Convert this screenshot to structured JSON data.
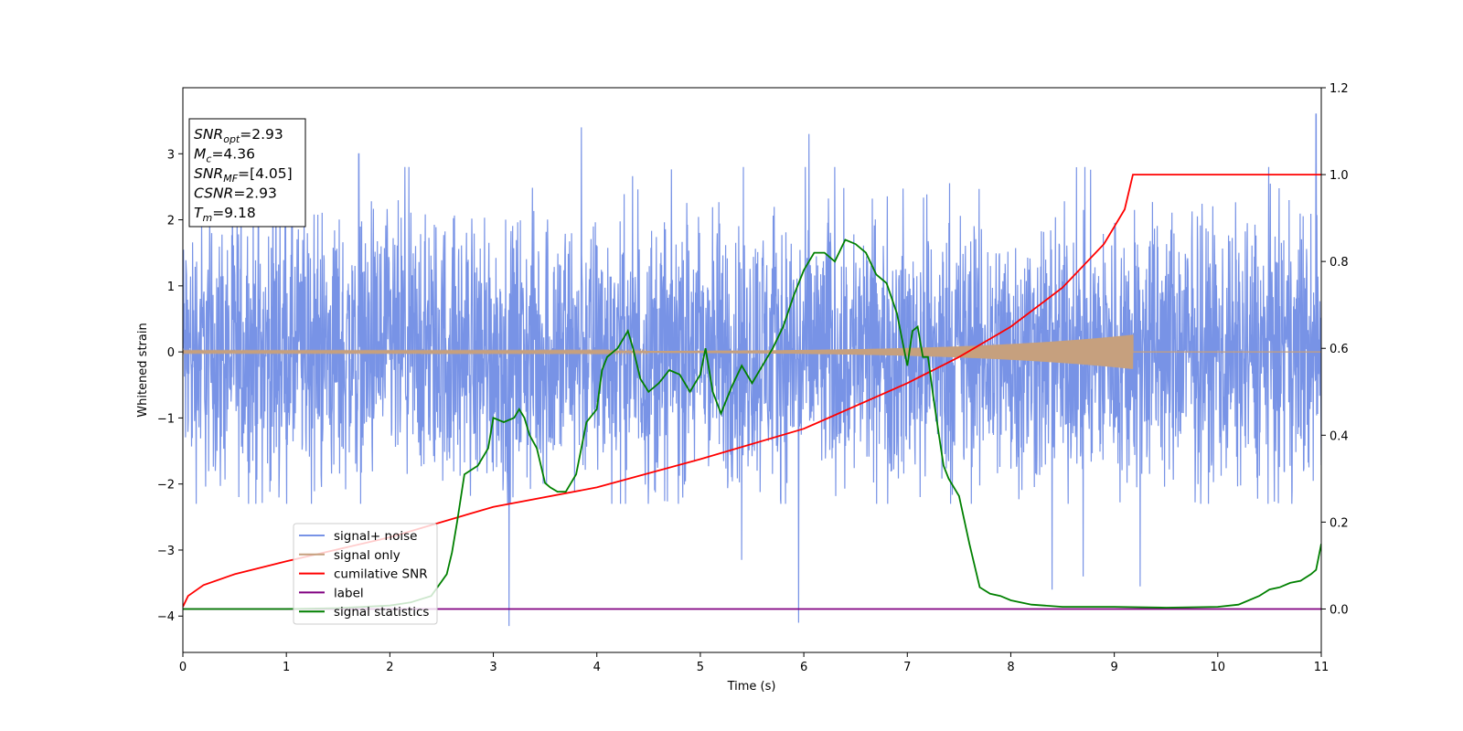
{
  "chart_data": {
    "type": "line",
    "xlabel": "Time (s)",
    "ylabel": "Whitened strain",
    "xlim": [
      0,
      11
    ],
    "ylim": [
      -4.55,
      4.0
    ],
    "y2lim": [
      -0.1,
      1.2
    ],
    "x_ticks": [
      0,
      1,
      2,
      3,
      4,
      5,
      6,
      7,
      8,
      9,
      10,
      11
    ],
    "y_ticks": [
      -4,
      -3,
      -2,
      -1,
      0,
      1,
      2,
      3
    ],
    "y2_ticks": [
      0.0,
      0.2,
      0.4,
      0.6,
      0.8,
      1.0,
      1.2
    ],
    "y2_tick_labels": [
      "0.0",
      "0.2",
      "0.4",
      "0.6",
      "0.8",
      "1.0",
      "1.2"
    ],
    "grid": false,
    "legend_position": "lower-left",
    "annotation": {
      "lines": [
        {
          "label": "SNR",
          "sub": "opt",
          "value": "=2.93"
        },
        {
          "label": "M",
          "sub": "c",
          "value": "=4.36"
        },
        {
          "label": "SNR",
          "sub": "MF",
          "value": "=[4.05]"
        },
        {
          "label": "CSNR",
          "sub": "",
          "value": "=2.93"
        },
        {
          "label": "T",
          "sub": "m",
          "value": "=9.18"
        }
      ]
    },
    "series": [
      {
        "name": "signal+ noise",
        "axis": "left",
        "color": "#7893e6",
        "kind": "noise",
        "mean": 0.0,
        "envelope_max": 2.6,
        "envelope_min": -1.7,
        "extremes": [
          [
            0.9,
            3.0
          ],
          [
            1.7,
            3.0
          ],
          [
            3.15,
            -4.15
          ],
          [
            3.85,
            3.4
          ],
          [
            5.4,
            -3.15
          ],
          [
            5.95,
            -4.1
          ],
          [
            6.05,
            3.3
          ],
          [
            8.4,
            -3.6
          ],
          [
            8.7,
            -3.4
          ],
          [
            9.25,
            -3.55
          ],
          [
            10.95,
            3.6
          ]
        ]
      },
      {
        "name": "signal only",
        "axis": "left",
        "color": "#c6a07e",
        "kind": "chirp",
        "end_x": 9.18,
        "amplitude_start": 0.01,
        "amplitude_end": 0.26
      },
      {
        "name": "cumilative SNR",
        "axis": "right",
        "color": "#ff0000",
        "points": [
          [
            0.0,
            0.005
          ],
          [
            0.05,
            0.03
          ],
          [
            0.2,
            0.055
          ],
          [
            0.5,
            0.08
          ],
          [
            1.0,
            0.11
          ],
          [
            2.0,
            0.165
          ],
          [
            3.0,
            0.235
          ],
          [
            4.0,
            0.28
          ],
          [
            5.0,
            0.345
          ],
          [
            6.0,
            0.415
          ],
          [
            7.0,
            0.52
          ],
          [
            7.5,
            0.58
          ],
          [
            8.0,
            0.65
          ],
          [
            8.5,
            0.74
          ],
          [
            8.9,
            0.84
          ],
          [
            9.1,
            0.92
          ],
          [
            9.18,
            1.0
          ],
          [
            11.0,
            1.0
          ]
        ]
      },
      {
        "name": "label",
        "axis": "right",
        "color": "#800080",
        "points": [
          [
            0.0,
            0.0
          ],
          [
            11.0,
            0.0
          ]
        ]
      },
      {
        "name": "signal statistics",
        "axis": "right",
        "color": "#008000",
        "points": [
          [
            0.0,
            0.0
          ],
          [
            0.5,
            0.0
          ],
          [
            1.0,
            0.0
          ],
          [
            1.5,
            0.002
          ],
          [
            2.0,
            0.008
          ],
          [
            2.2,
            0.015
          ],
          [
            2.4,
            0.03
          ],
          [
            2.55,
            0.08
          ],
          [
            2.6,
            0.13
          ],
          [
            2.65,
            0.2
          ],
          [
            2.72,
            0.31
          ],
          [
            2.85,
            0.33
          ],
          [
            2.95,
            0.37
          ],
          [
            3.0,
            0.44
          ],
          [
            3.1,
            0.43
          ],
          [
            3.2,
            0.44
          ],
          [
            3.25,
            0.46
          ],
          [
            3.3,
            0.44
          ],
          [
            3.35,
            0.4
          ],
          [
            3.42,
            0.37
          ],
          [
            3.5,
            0.29
          ],
          [
            3.55,
            0.28
          ],
          [
            3.62,
            0.27
          ],
          [
            3.7,
            0.27
          ],
          [
            3.8,
            0.31
          ],
          [
            3.9,
            0.43
          ],
          [
            4.0,
            0.46
          ],
          [
            4.05,
            0.55
          ],
          [
            4.1,
            0.58
          ],
          [
            4.2,
            0.6
          ],
          [
            4.3,
            0.64
          ],
          [
            4.35,
            0.6
          ],
          [
            4.42,
            0.53
          ],
          [
            4.5,
            0.5
          ],
          [
            4.6,
            0.52
          ],
          [
            4.7,
            0.55
          ],
          [
            4.8,
            0.54
          ],
          [
            4.9,
            0.5
          ],
          [
            5.0,
            0.54
          ],
          [
            5.05,
            0.6
          ],
          [
            5.12,
            0.5
          ],
          [
            5.2,
            0.45
          ],
          [
            5.3,
            0.51
          ],
          [
            5.4,
            0.56
          ],
          [
            5.5,
            0.52
          ],
          [
            5.6,
            0.56
          ],
          [
            5.7,
            0.6
          ],
          [
            5.8,
            0.65
          ],
          [
            5.9,
            0.72
          ],
          [
            6.0,
            0.78
          ],
          [
            6.1,
            0.82
          ],
          [
            6.2,
            0.82
          ],
          [
            6.3,
            0.8
          ],
          [
            6.4,
            0.85
          ],
          [
            6.5,
            0.84
          ],
          [
            6.6,
            0.82
          ],
          [
            6.7,
            0.77
          ],
          [
            6.8,
            0.75
          ],
          [
            6.9,
            0.68
          ],
          [
            6.95,
            0.62
          ],
          [
            7.0,
            0.56
          ],
          [
            7.05,
            0.64
          ],
          [
            7.1,
            0.65
          ],
          [
            7.15,
            0.58
          ],
          [
            7.2,
            0.58
          ],
          [
            7.25,
            0.49
          ],
          [
            7.3,
            0.41
          ],
          [
            7.35,
            0.33
          ],
          [
            7.4,
            0.3
          ],
          [
            7.5,
            0.26
          ],
          [
            7.6,
            0.15
          ],
          [
            7.7,
            0.05
          ],
          [
            7.8,
            0.035
          ],
          [
            7.9,
            0.03
          ],
          [
            8.0,
            0.02
          ],
          [
            8.2,
            0.01
          ],
          [
            8.5,
            0.005
          ],
          [
            9.0,
            0.005
          ],
          [
            9.5,
            0.003
          ],
          [
            10.0,
            0.005
          ],
          [
            10.2,
            0.01
          ],
          [
            10.4,
            0.03
          ],
          [
            10.5,
            0.045
          ],
          [
            10.6,
            0.05
          ],
          [
            10.7,
            0.06
          ],
          [
            10.8,
            0.065
          ],
          [
            10.9,
            0.08
          ],
          [
            10.95,
            0.09
          ],
          [
            11.0,
            0.15
          ]
        ]
      }
    ]
  }
}
